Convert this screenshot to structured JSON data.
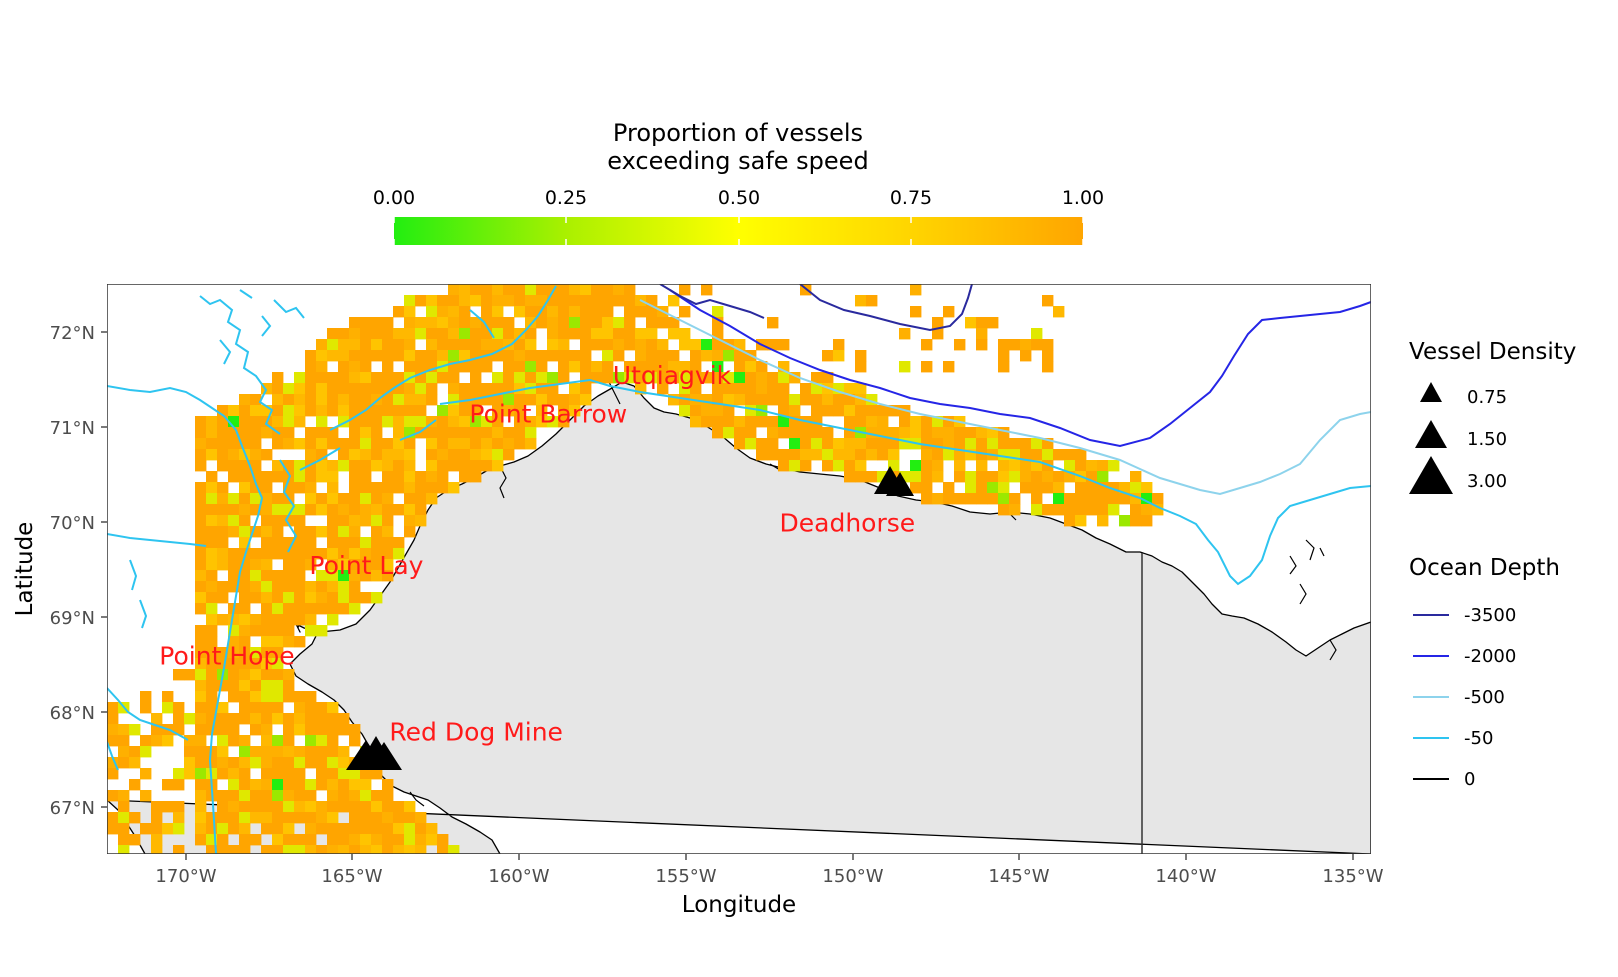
{
  "colorbar": {
    "title_line1": "Proportion of vessels",
    "title_line2": "exceeding safe speed",
    "ticks": [
      "0.00",
      "0.25",
      "0.50",
      "0.75",
      "1.00"
    ],
    "stops": [
      "#22ee11",
      "#aaf000",
      "#ffff00",
      "#ffd500",
      "#ffa500"
    ]
  },
  "axes": {
    "xlabel": "Longitude",
    "ylabel": "Latitude",
    "x_ticks": [
      "170°W",
      "165°W",
      "160°W",
      "155°W",
      "150°W",
      "145°W",
      "140°W",
      "135°W"
    ],
    "y_ticks": [
      "72°N",
      "71°N",
      "70°N",
      "69°N",
      "68°N",
      "67°N"
    ]
  },
  "places": [
    {
      "name": "Utqiagvik",
      "lon": -157.2,
      "lat": 71.45
    },
    {
      "name": "Point Barrow",
      "lon": -161.5,
      "lat": 71.05
    },
    {
      "name": "Deadhorse",
      "lon": -152.2,
      "lat": 69.9
    },
    {
      "name": "Point Lay",
      "lon": -166.3,
      "lat": 69.45
    },
    {
      "name": "Point Hope",
      "lon": -170.8,
      "lat": 68.5
    },
    {
      "name": "Red Dog Mine",
      "lon": -163.9,
      "lat": 67.7
    }
  ],
  "legend_density": {
    "title": "Vessel Density",
    "items": [
      "0.75",
      "1.50",
      "3.00"
    ]
  },
  "legend_depth": {
    "title": "Ocean Depth",
    "items": [
      {
        "label": "-3500",
        "color": "#2a2a9e"
      },
      {
        "label": "-2000",
        "color": "#2525e6"
      },
      {
        "label": "-500",
        "color": "#8dd3ec"
      },
      {
        "label": "-50",
        "color": "#2ec4f0"
      },
      {
        "label": "0",
        "color": "#000000"
      }
    ]
  },
  "colors": {
    "land": "#e6e6e6",
    "orange": "#ffa500",
    "place_label": "#ff1a1a"
  }
}
